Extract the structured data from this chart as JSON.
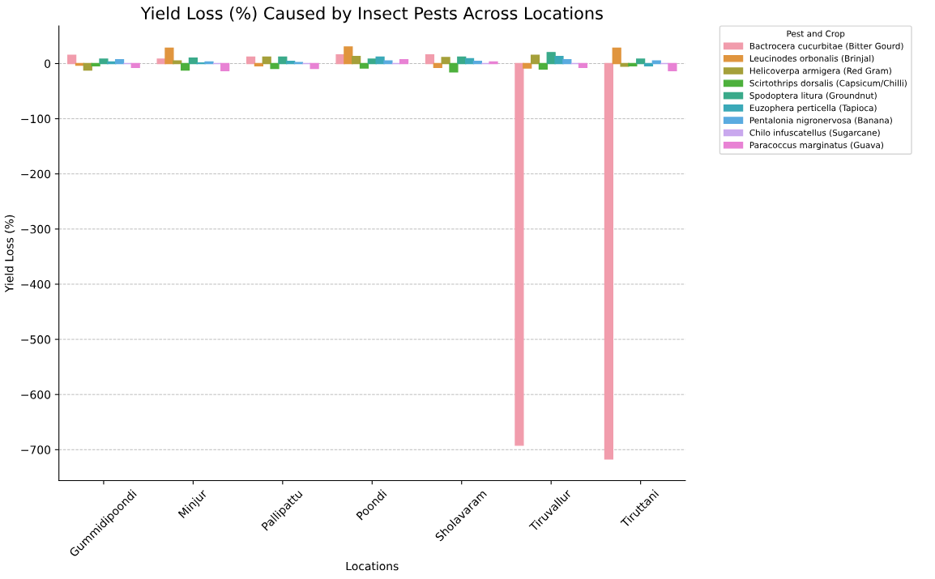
{
  "chart_data": {
    "type": "bar",
    "title": "Yield Loss (%) Caused by Insect Pests Across Locations",
    "xlabel": "Locations",
    "ylabel": "Yield Loss (%)",
    "legend_title": "Pest and Crop",
    "categories": [
      "Gummidipoondi",
      "Minjur",
      "Pallipattu",
      "Poondi",
      "Sholavaram",
      "Tiruvallur",
      "Tiruttani"
    ],
    "series": [
      {
        "name": "Bactrocera cucurbitae (Bitter Gourd)",
        "color": "#f19cac",
        "values": [
          15,
          8,
          12,
          16,
          16,
          -692,
          -717
        ]
      },
      {
        "name": "Leucinodes orbonalis (Brinjal)",
        "color": "#e0953e",
        "values": [
          -3,
          28,
          -4,
          30,
          -7,
          -8,
          28
        ]
      },
      {
        "name": "Helicoverpa armigera (Red Gram)",
        "color": "#a5a03a",
        "values": [
          -12,
          5,
          12,
          13,
          11,
          15,
          -5
        ]
      },
      {
        "name": "Scirtothrips dorsalis (Capsicum/Chilli)",
        "color": "#4db03c",
        "values": [
          -4,
          -12,
          -9,
          -8,
          -15,
          -10,
          -4
        ]
      },
      {
        "name": "Spodoptera litura (Groundnut)",
        "color": "#3aaa8a",
        "values": [
          8,
          10,
          12,
          8,
          12,
          20,
          8
        ]
      },
      {
        "name": "Euzophera perticella (Tapioca)",
        "color": "#3ba9b8",
        "values": [
          3,
          1,
          4,
          12,
          9,
          13,
          -4
        ]
      },
      {
        "name": "Pentalonia nigronervosa (Banana)",
        "color": "#5aabe0",
        "values": [
          7,
          3,
          2,
          5,
          4,
          7,
          5
        ]
      },
      {
        "name": "Chilo infuscatellus (Sugarcane)",
        "color": "#c9a8ee",
        "values": [
          0,
          0,
          0,
          0,
          0,
          0,
          0
        ]
      },
      {
        "name": "Paracoccus marginatus (Guava)",
        "color": "#e882d4",
        "values": [
          -7,
          -13,
          -9,
          7,
          3,
          -7,
          -13
        ]
      }
    ],
    "ylim": [
      -756,
      68
    ],
    "yticks": [
      -700,
      -600,
      -500,
      -400,
      -300,
      -200,
      -100,
      0
    ],
    "grid": "y",
    "legend": "top right"
  }
}
